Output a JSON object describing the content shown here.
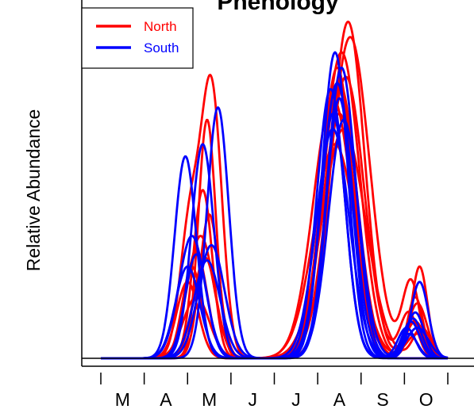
{
  "chart_data": {
    "type": "line",
    "title": "Phenology",
    "xlabel": "",
    "ylabel": "Relative Abundance",
    "x_tick_labels": [
      "M",
      "A",
      "M",
      "J",
      "J",
      "A",
      "S",
      "O"
    ],
    "xlim": [
      0,
      8
    ],
    "ylim": [
      0,
      1
    ],
    "legend": {
      "position": "top-left",
      "entries": [
        {
          "name": "North",
          "color": "#ff0000"
        },
        {
          "name": "South",
          "color": "#0000ff"
        }
      ]
    },
    "series": [
      {
        "name": "North",
        "color": "#ff0000",
        "peaks": [
          [
            2.05,
            0.43,
            0.23
          ],
          [
            2.55,
            0.88,
            0.24
          ],
          [
            5.55,
            1.0,
            0.42
          ],
          [
            7.35,
            0.3,
            0.18
          ]
        ]
      },
      {
        "name": "North",
        "color": "#ff0000",
        "peaks": [
          [
            2.2,
            0.35,
            0.25
          ],
          [
            5.5,
            0.9,
            0.4
          ],
          [
            7.25,
            0.2,
            0.18
          ]
        ]
      },
      {
        "name": "North",
        "color": "#ff0000",
        "peaks": [
          [
            2.45,
            0.78,
            0.2
          ],
          [
            5.7,
            1.1,
            0.38
          ],
          [
            7.2,
            0.12,
            0.2
          ]
        ]
      },
      {
        "name": "North",
        "color": "#ff0000",
        "peaks": [
          [
            2.1,
            0.3,
            0.22
          ],
          [
            5.75,
            1.05,
            0.45
          ],
          [
            7.15,
            0.25,
            0.2
          ]
        ]
      },
      {
        "name": "North",
        "color": "#ff0000",
        "peaks": [
          [
            2.35,
            0.55,
            0.22
          ],
          [
            5.45,
            0.95,
            0.36
          ]
        ]
      },
      {
        "name": "North",
        "color": "#ff0000",
        "peaks": [
          [
            2.3,
            0.4,
            0.3
          ],
          [
            5.35,
            0.85,
            0.45
          ],
          [
            7.3,
            0.18,
            0.22
          ]
        ]
      },
      {
        "name": "North",
        "color": "#ff0000",
        "peaks": [
          [
            2.0,
            0.25,
            0.25
          ],
          [
            5.6,
            0.75,
            0.5
          ],
          [
            7.4,
            0.1,
            0.2
          ]
        ]
      },
      {
        "name": "North",
        "color": "#ff0000",
        "peaks": [
          [
            2.5,
            0.47,
            0.22
          ],
          [
            5.65,
            0.92,
            0.42
          ],
          [
            7.1,
            0.15,
            0.2
          ]
        ]
      },
      {
        "name": "North",
        "color": "#ff0000",
        "peaks": [
          [
            2.4,
            0.33,
            0.26
          ],
          [
            5.5,
            0.8,
            0.4
          ],
          [
            7.25,
            0.12,
            0.22
          ]
        ]
      },
      {
        "name": "North",
        "color": "#ff0000",
        "peaks": [
          [
            2.2,
            0.2,
            0.3
          ],
          [
            5.4,
            0.7,
            0.48
          ],
          [
            7.3,
            0.08,
            0.25
          ]
        ]
      },
      {
        "name": "South",
        "color": "#0000ff",
        "peaks": [
          [
            1.95,
            0.66,
            0.25
          ],
          [
            5.4,
            1.0,
            0.3
          ],
          [
            7.25,
            0.15,
            0.2
          ]
        ]
      },
      {
        "name": "South",
        "color": "#0000ff",
        "peaks": [
          [
            2.7,
            0.82,
            0.25
          ],
          [
            5.55,
            0.95,
            0.33
          ],
          [
            7.35,
            0.25,
            0.2
          ]
        ]
      },
      {
        "name": "South",
        "color": "#0000ff",
        "peaks": [
          [
            2.35,
            0.7,
            0.26
          ],
          [
            5.45,
            0.9,
            0.35
          ],
          [
            7.15,
            0.12,
            0.2
          ]
        ]
      },
      {
        "name": "South",
        "color": "#0000ff",
        "peaks": [
          [
            2.1,
            0.4,
            0.3
          ],
          [
            5.3,
            0.88,
            0.32
          ],
          [
            7.05,
            0.1,
            0.2
          ]
        ]
      },
      {
        "name": "South",
        "color": "#0000ff",
        "peaks": [
          [
            2.55,
            0.37,
            0.3
          ],
          [
            5.6,
            0.78,
            0.35
          ],
          [
            7.2,
            0.13,
            0.2
          ]
        ]
      },
      {
        "name": "South",
        "color": "#0000ff",
        "peaks": [
          [
            2.2,
            0.34,
            0.25
          ],
          [
            5.35,
            0.8,
            0.3
          ]
        ]
      },
      {
        "name": "South",
        "color": "#0000ff",
        "peaks": [
          [
            2.0,
            0.3,
            0.28
          ],
          [
            5.5,
            0.85,
            0.3
          ],
          [
            7.3,
            0.1,
            0.25
          ]
        ]
      },
      {
        "name": "South",
        "color": "#0000ff",
        "peaks": [
          [
            2.45,
            0.32,
            0.3
          ],
          [
            5.35,
            0.75,
            0.38
          ],
          [
            7.1,
            0.08,
            0.2
          ]
        ]
      }
    ]
  }
}
